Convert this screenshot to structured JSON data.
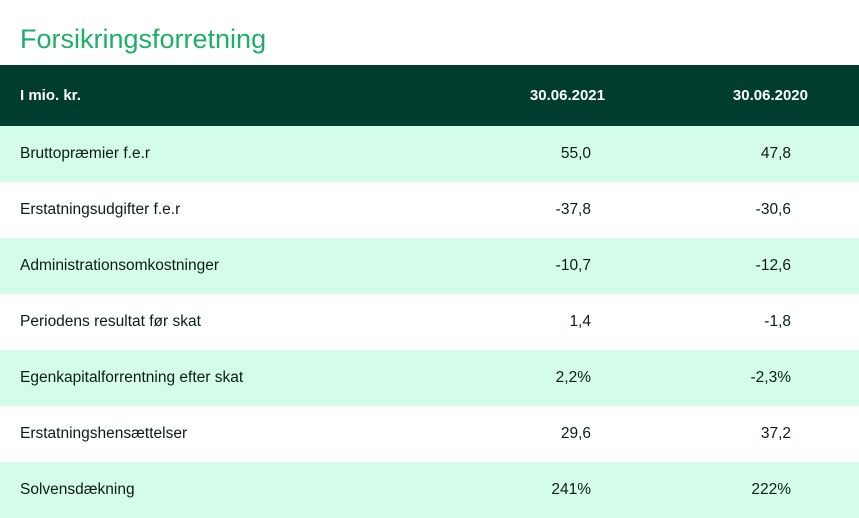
{
  "title": "Forsikringsforretning",
  "table": {
    "header": {
      "label": "I mio. kr.",
      "col_a": "30.06.2021",
      "col_b": "30.06.2020"
    },
    "rows": [
      {
        "label": "Bruttopræmier f.e.r",
        "a": "55,0",
        "b": "47,8"
      },
      {
        "label": "Erstatningsudgifter f.e.r",
        "a": "-37,8",
        "b": "-30,6"
      },
      {
        "label": "Administrationsomkostninger",
        "a": "-10,7",
        "b": "-12,6"
      },
      {
        "label": "Periodens resultat før skat",
        "a": "1,4",
        "b": "-1,8"
      },
      {
        "label": "Egenkapitalforrentning efter skat",
        "a": "2,2%",
        "b": "-2,3%"
      },
      {
        "label": "Erstatningshensættelser",
        "a": "29,6",
        "b": "37,2"
      },
      {
        "label": "Solvensdækning",
        "a": "241%",
        "b": "222%"
      }
    ]
  },
  "colors": {
    "title": "#1fae6a",
    "header_bg": "#003d2e",
    "stripe": "#d3fde9"
  }
}
